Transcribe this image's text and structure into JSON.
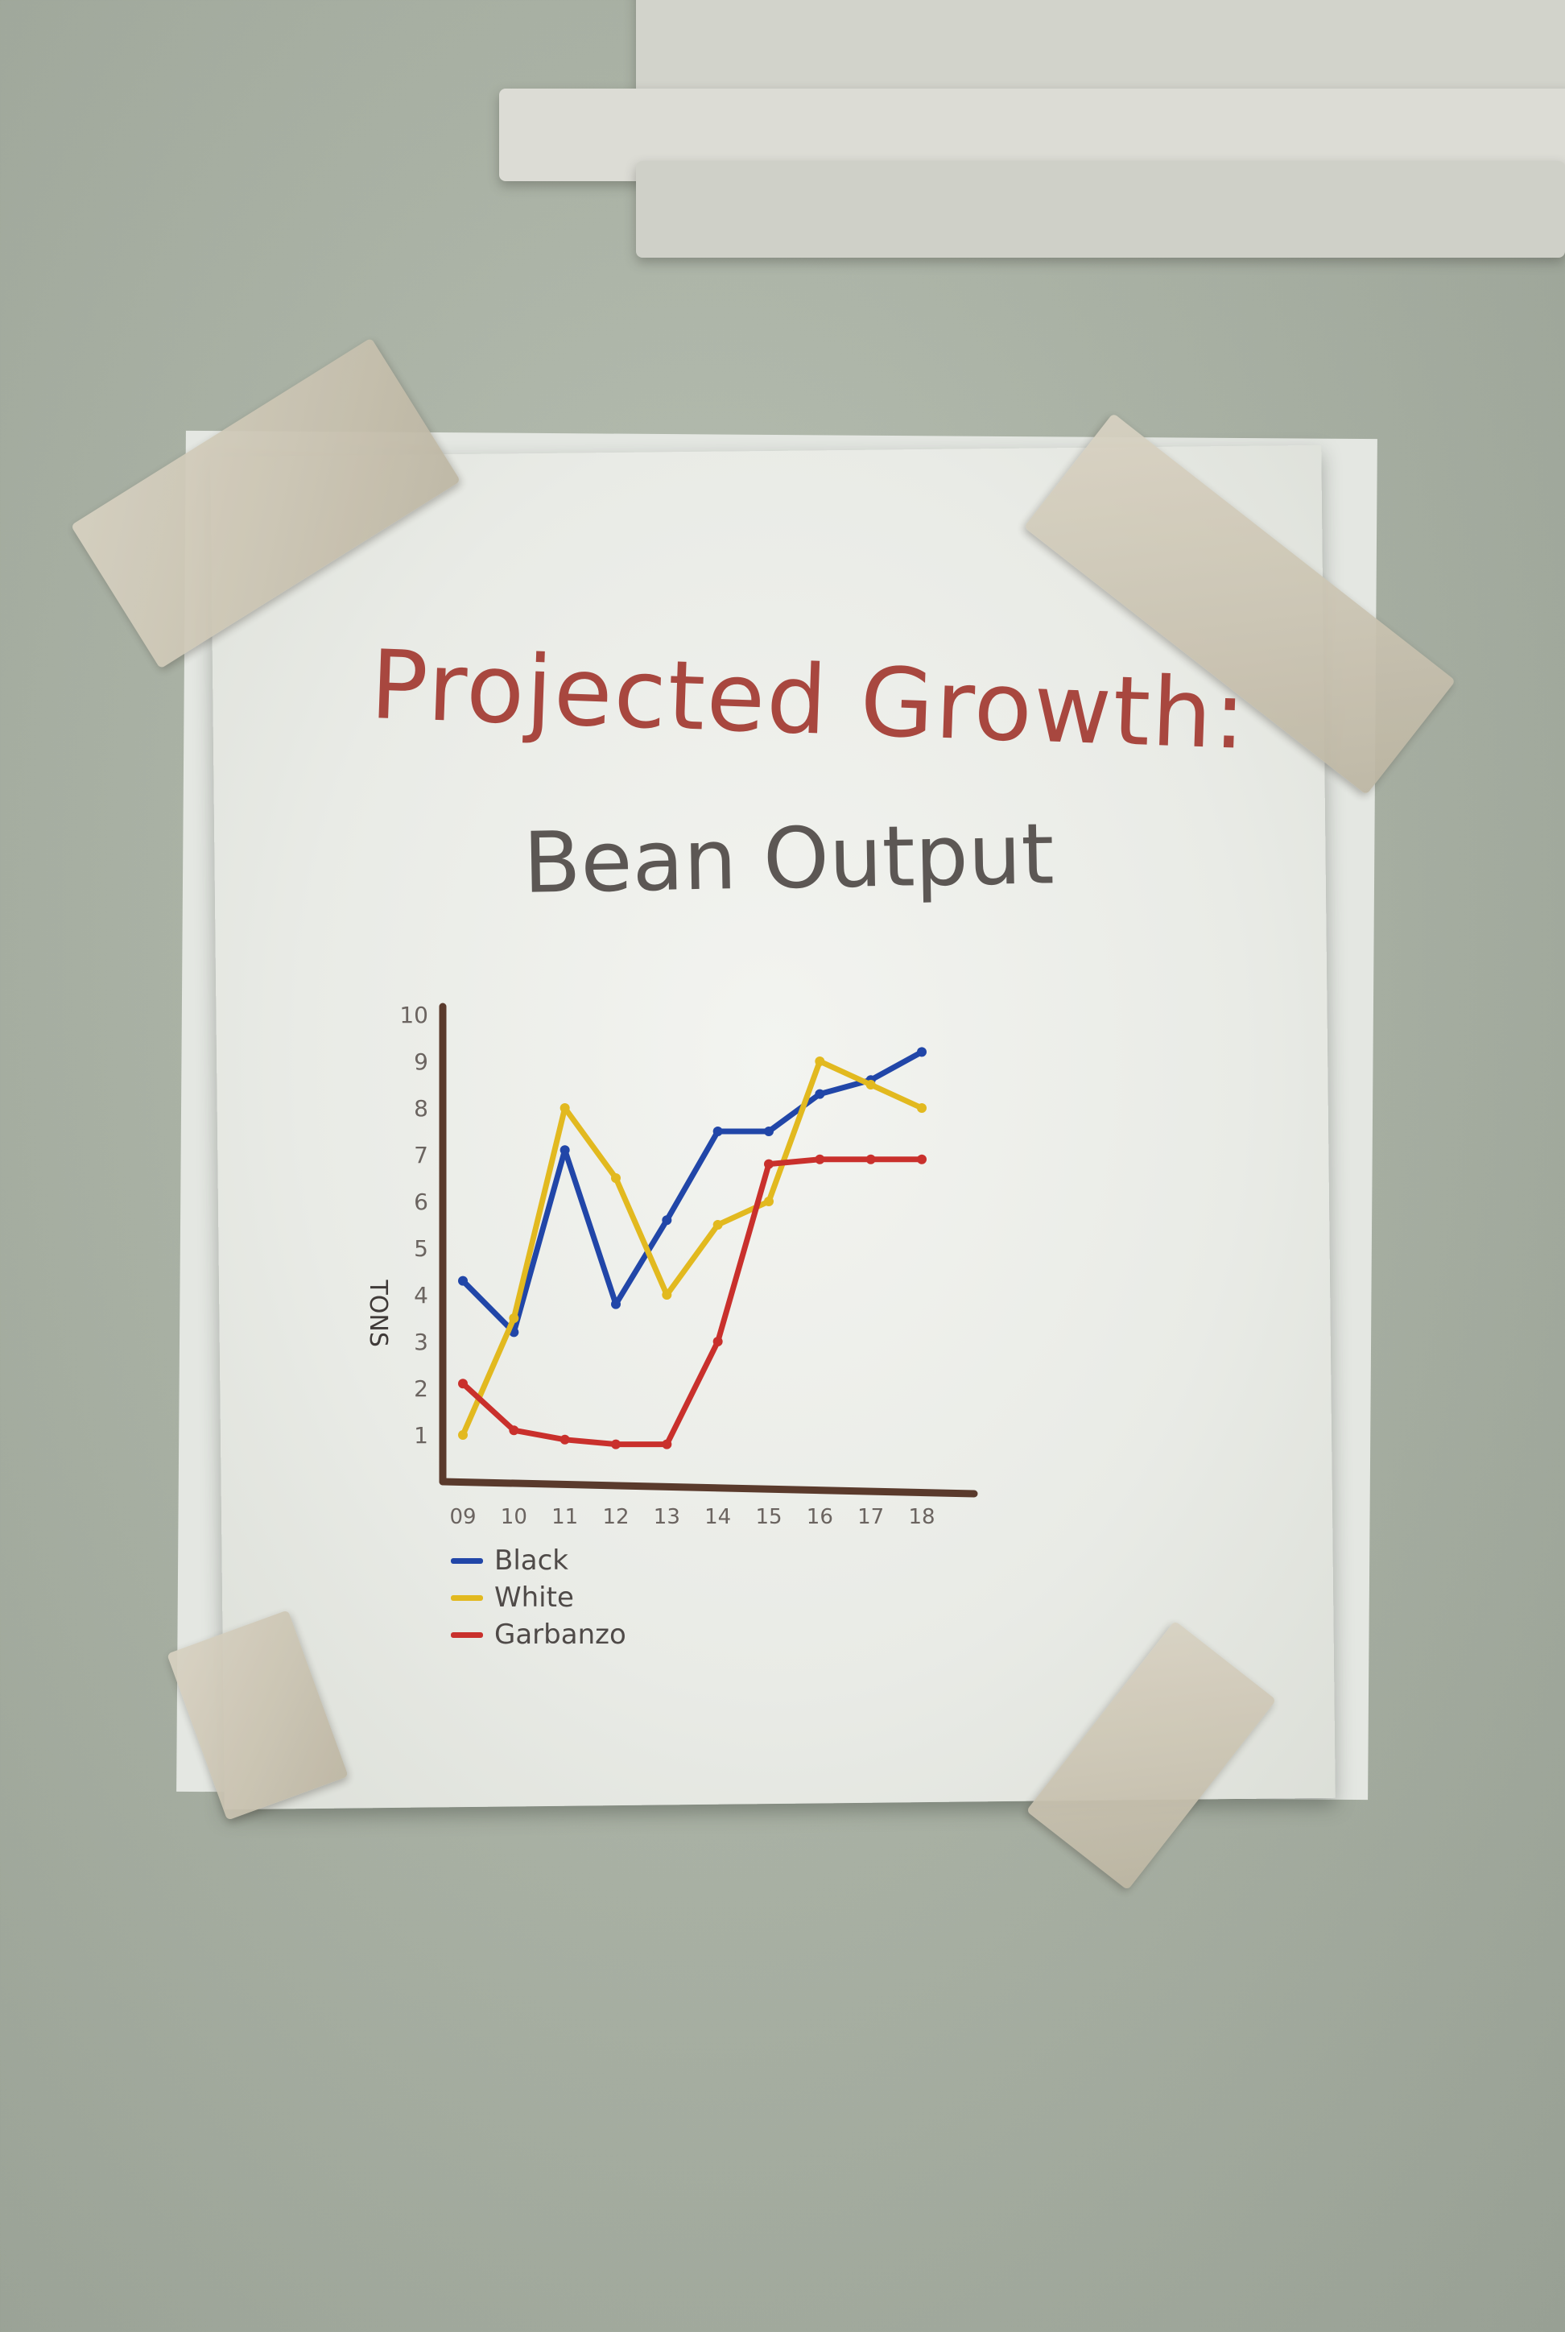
{
  "poster": {
    "title": "Projected Growth:",
    "subtitle": "Bean Output"
  },
  "colors": {
    "wall": "#a9b1a4",
    "paper": "#eef0ec",
    "tape": "#cfc8b6",
    "title": "#a8473f",
    "subtitle": "#5c5754",
    "axis": "#5a3a2c"
  },
  "chart_data": {
    "type": "line",
    "title": "Projected Growth: Bean Output",
    "xlabel": "",
    "ylabel": "TONS",
    "x": [
      "09",
      "10",
      "11",
      "12",
      "13",
      "14",
      "15",
      "16",
      "17",
      "18"
    ],
    "y_ticks": [
      "1",
      "2",
      "3",
      "4",
      "5",
      "6",
      "7",
      "8",
      "9",
      "10"
    ],
    "ylim": [
      0,
      10
    ],
    "grid": false,
    "legend_position": "bottom-left",
    "series": [
      {
        "name": "Black",
        "color": "#2146a8",
        "values": [
          4.3,
          3.2,
          7.1,
          3.8,
          5.6,
          7.5,
          7.5,
          8.3,
          8.6,
          9.2
        ]
      },
      {
        "name": "White",
        "color": "#e2b91f",
        "values": [
          1.0,
          3.5,
          8.0,
          6.5,
          4.0,
          5.5,
          6.0,
          9.0,
          8.5,
          8.0
        ]
      },
      {
        "name": "Garbanzo",
        "color": "#c9302c",
        "values": [
          2.1,
          1.1,
          0.9,
          0.8,
          0.8,
          3.0,
          6.8,
          6.9,
          6.9,
          6.9
        ]
      }
    ]
  }
}
